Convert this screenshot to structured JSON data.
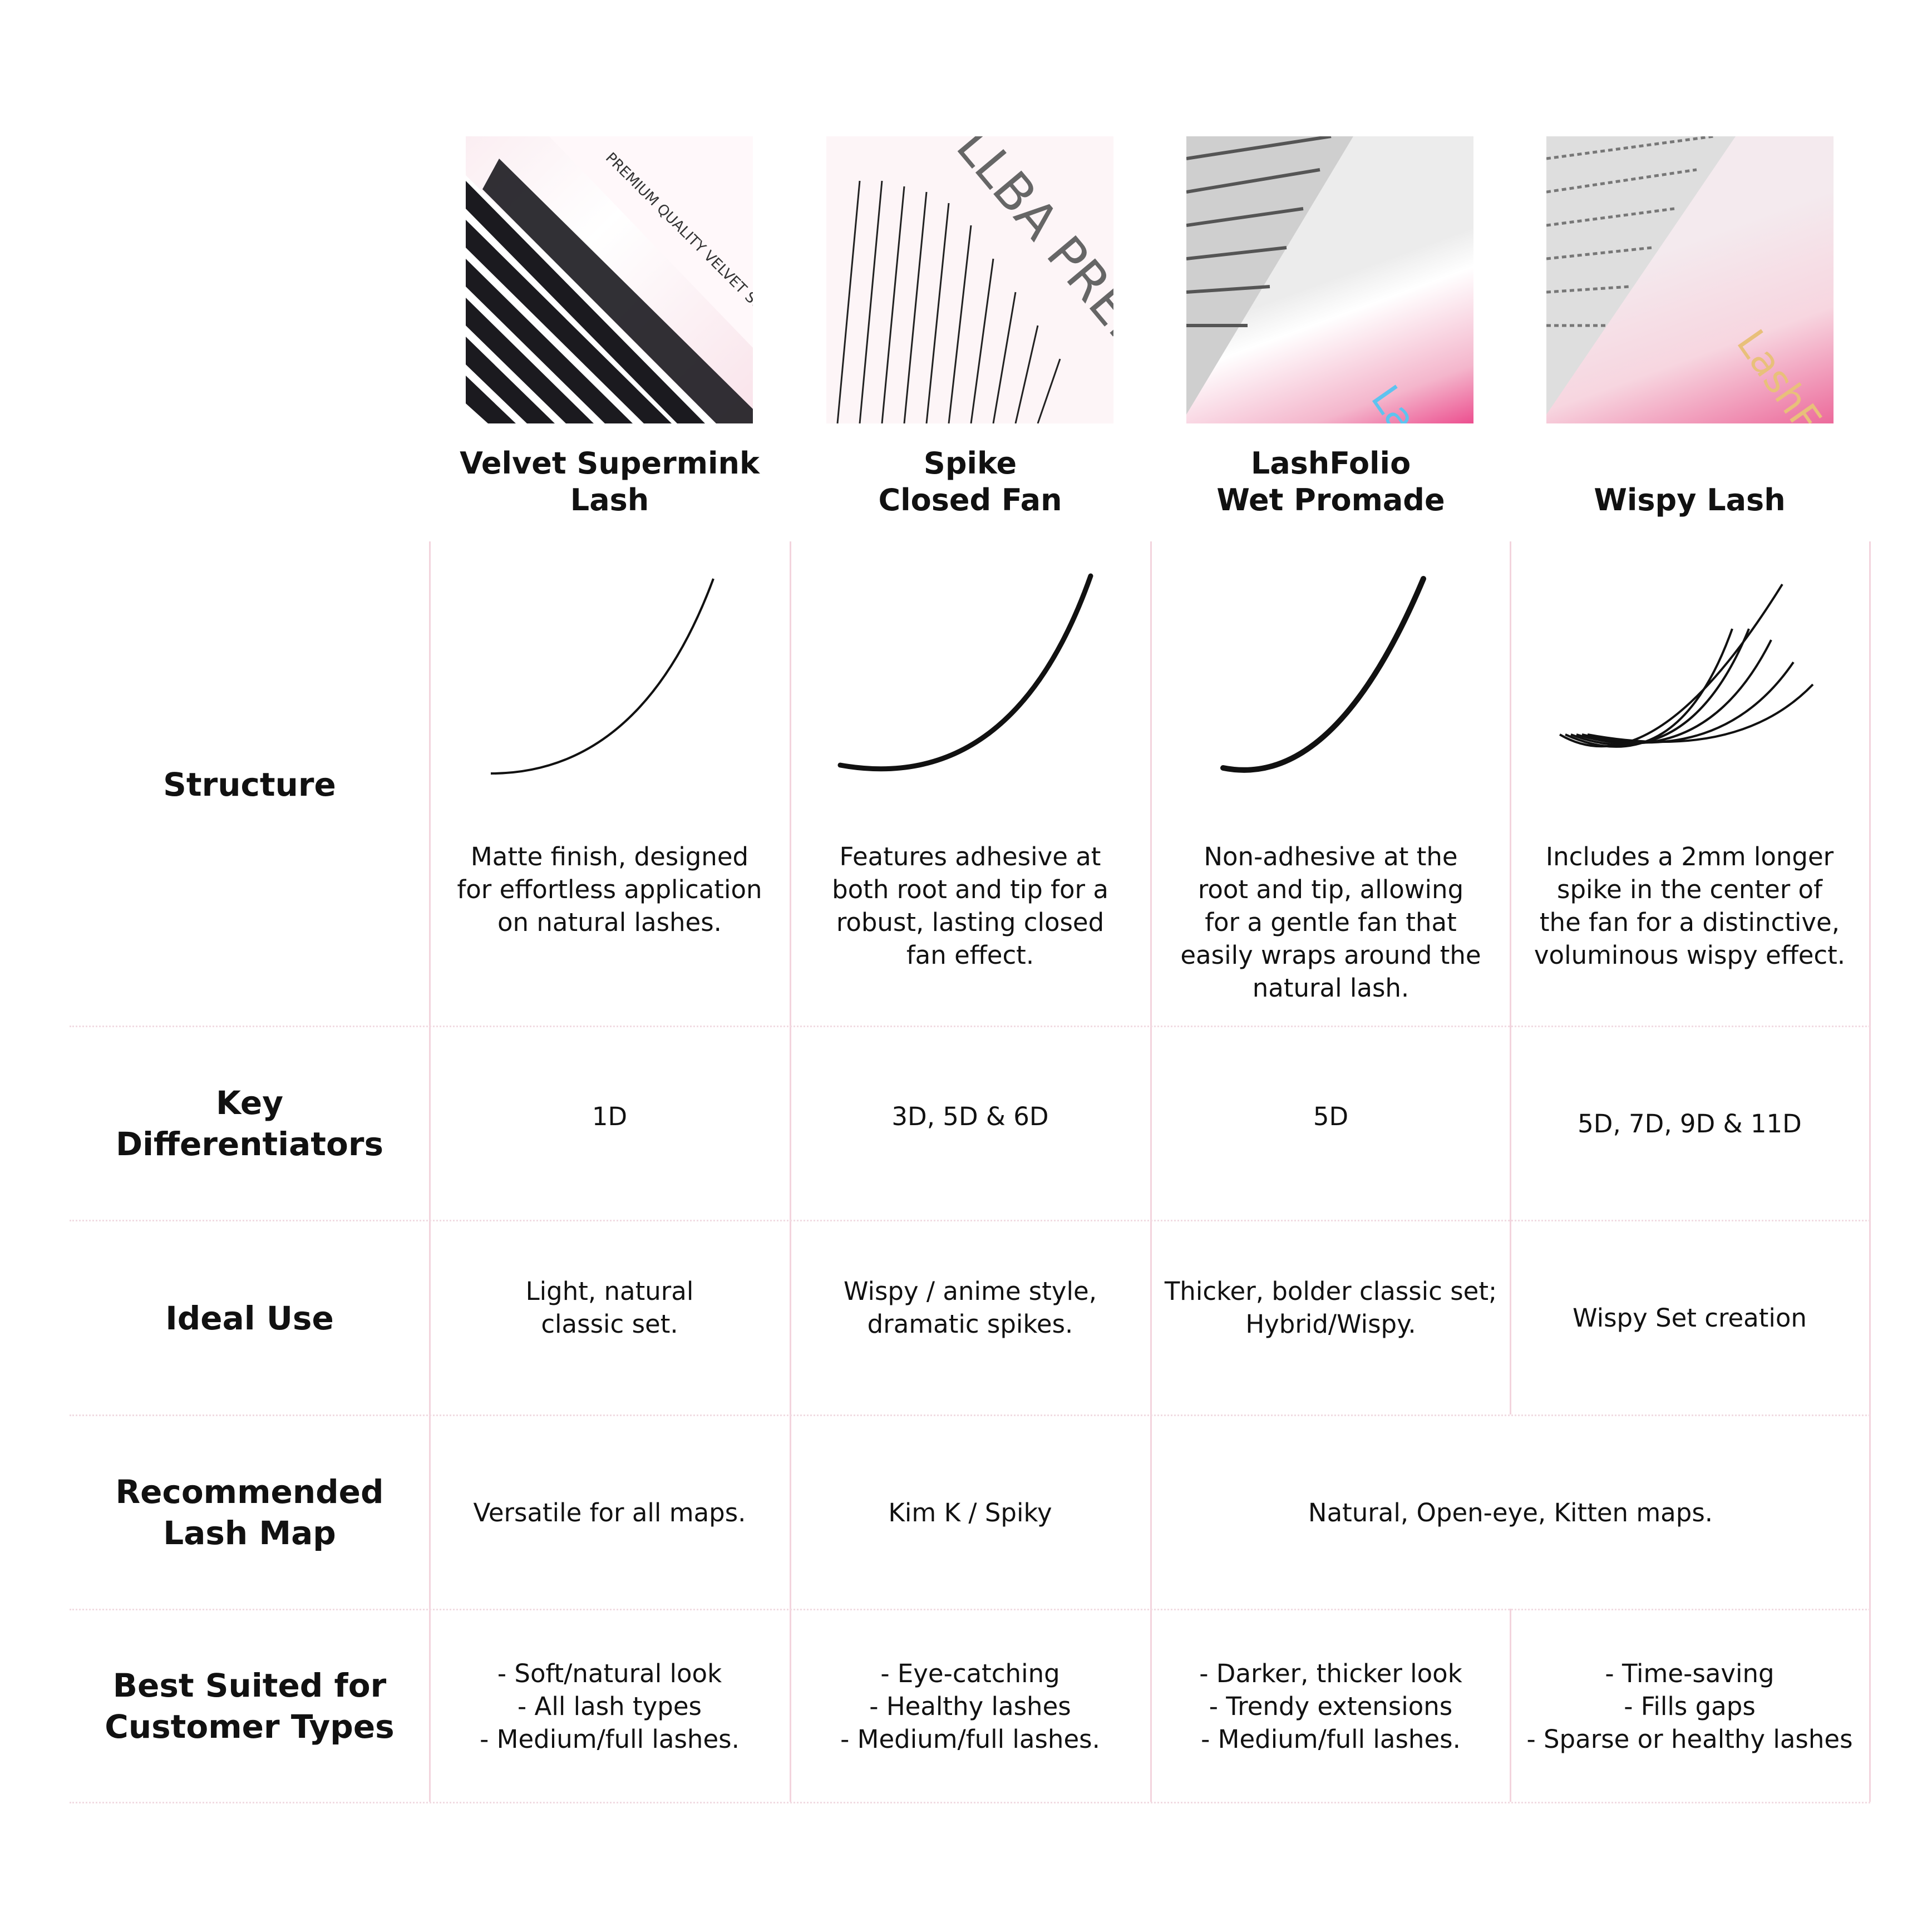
{
  "products": [
    {
      "name_line1": "Velvet Supermink",
      "name_line2": "Lash",
      "image_text": "PREMIUM QUALITY VELVET SUPERMINK"
    },
    {
      "name_line1": "Spike",
      "name_line2": "Closed Fan",
      "image_text": "LLBA PREMIUM QUALITY PRO-MADE FAN COLLECTION"
    },
    {
      "name_line1": "LashFolio",
      "name_line2": "Wet Promade",
      "image_text": "Lash"
    },
    {
      "name_line1": "",
      "name_line2": "Wispy Lash",
      "image_text": "LashF"
    }
  ],
  "rows": {
    "structure": {
      "label": "Structure",
      "cells": [
        "Matte finish, designed\nfor effortless application\non natural lashes.",
        "Features adhesive at\nboth root and tip for a\nrobust, lasting closed\nfan effect.",
        "Non-adhesive at the\nroot and tip, allowing\nfor a gentle fan that\neasily wraps around the\nnatural lash.",
        "Includes a 2mm longer\nspike in the center of\nthe fan for a distinctive,\nvoluminous wispy effect."
      ]
    },
    "key_differentiators": {
      "label": "Key\nDifferentiators",
      "cells": [
        "1D",
        "3D, 5D & 6D",
        "5D",
        "5D, 7D, 9D & 11D"
      ]
    },
    "ideal_use": {
      "label": "Ideal Use",
      "cells": [
        "Light, natural\nclassic set.",
        "Wispy / anime style,\ndramatic spikes.",
        "Thicker, bolder classic set;\nHybrid/Wispy.",
        "Wispy Set creation"
      ]
    },
    "lash_map": {
      "label": "Recommended\nLash Map",
      "cells": [
        "Versatile for all maps.",
        "Kim K / Spiky",
        "Natural, Open-eye, Kitten maps."
      ]
    },
    "customer_types": {
      "label": "Best Suited for\nCustomer Types",
      "cells": [
        "- Soft/natural look\n- All lash types\n- Medium/full lashes.",
        "- Eye-catching\n- Healthy lashes\n- Medium/full lashes.",
        "- Darker, thicker look\n- Trendy extensions\n- Medium/full lashes.",
        "- Time-saving\n- Fills gaps\n- Sparse or healthy lashes"
      ]
    }
  },
  "colors": {
    "divider": "#f3d4dd",
    "pink": "#ec4f8f",
    "text": "#111111"
  }
}
